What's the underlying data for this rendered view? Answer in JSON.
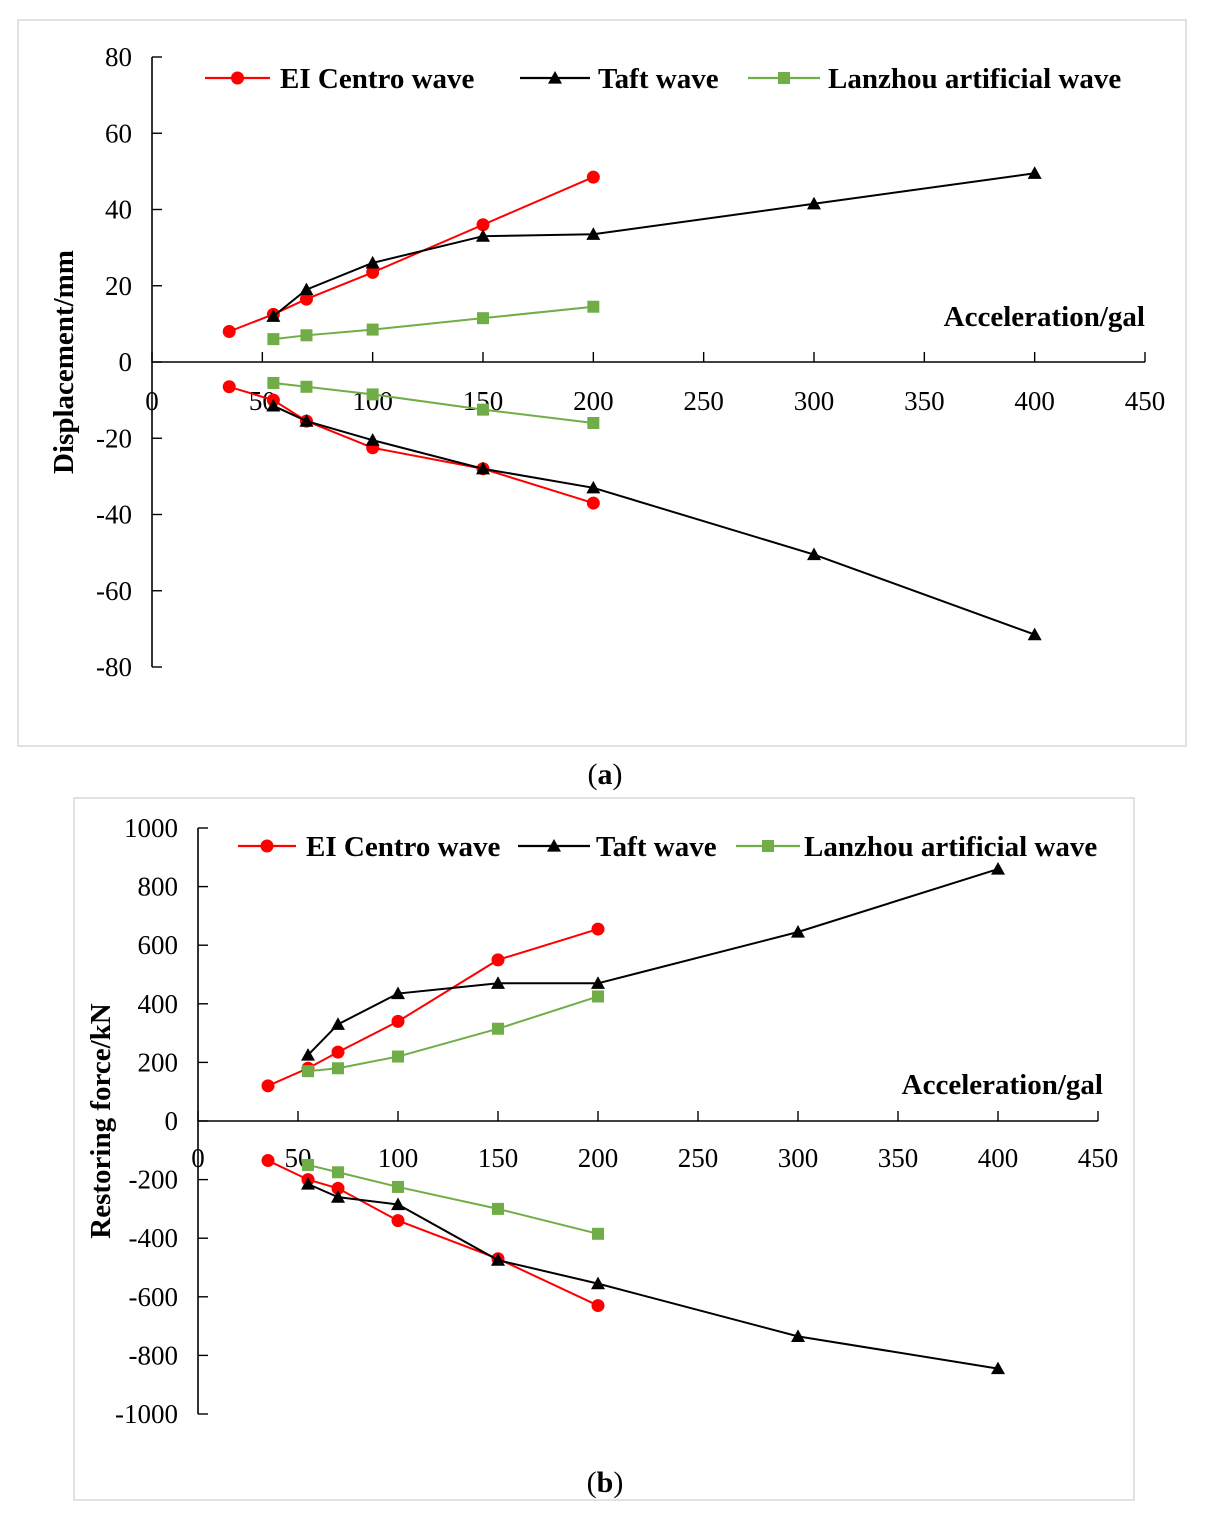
{
  "captions": {
    "a": "a",
    "b": "b"
  },
  "chart_data": [
    {
      "type": "line",
      "panel": "a",
      "title": "",
      "xlabel": "Acceleration/gal",
      "ylabel": "Displacement/mm",
      "xlim": [
        0,
        450
      ],
      "ylim": [
        -80,
        80
      ],
      "xticks": [
        0,
        50,
        100,
        150,
        200,
        250,
        300,
        350,
        400,
        450
      ],
      "yticks": [
        -80,
        -60,
        -40,
        -20,
        0,
        20,
        40,
        60,
        80
      ],
      "legend": "top",
      "colors": {
        "EI Centro wave": "#ff0000",
        "Taft wave": "#000000",
        "Lanzhou artificial wave": "#70ad47"
      },
      "series": [
        {
          "name": "EI Centro wave",
          "marker": "circle",
          "x": [
            35,
            55,
            70,
            100,
            150,
            200
          ],
          "y": [
            8,
            12.5,
            16.5,
            23.5,
            36,
            48.5
          ]
        },
        {
          "name": "EI Centro wave",
          "marker": "circle",
          "x": [
            35,
            55,
            70,
            100,
            150,
            200
          ],
          "y": [
            -6.5,
            -10,
            -15.5,
            -22.5,
            -28,
            -37
          ]
        },
        {
          "name": "Taft wave",
          "marker": "triangle",
          "x": [
            55,
            70,
            100,
            150,
            200,
            300,
            400
          ],
          "y": [
            12,
            19,
            26,
            33,
            33.5,
            41.5,
            49.5
          ]
        },
        {
          "name": "Taft wave",
          "marker": "triangle",
          "x": [
            55,
            70,
            100,
            150,
            200,
            300,
            400
          ],
          "y": [
            -11.5,
            -15.5,
            -20.5,
            -28,
            -33,
            -50.5,
            -71.5
          ]
        },
        {
          "name": "Lanzhou artificial wave",
          "marker": "square",
          "x": [
            55,
            70,
            100,
            150,
            200
          ],
          "y": [
            6,
            7,
            8.5,
            11.5,
            14.5
          ]
        },
        {
          "name": "Lanzhou artificial wave",
          "marker": "square",
          "x": [
            55,
            70,
            100,
            150,
            200
          ],
          "y": [
            -5.5,
            -6.5,
            -8.5,
            -12.5,
            -16
          ]
        }
      ]
    },
    {
      "type": "line",
      "panel": "b",
      "title": "",
      "xlabel": "Acceleration/gal",
      "ylabel": "Restoring force/kN",
      "xlim": [
        0,
        450
      ],
      "ylim": [
        -1000,
        1000
      ],
      "xticks": [
        0,
        50,
        100,
        150,
        200,
        250,
        300,
        350,
        400,
        450
      ],
      "yticks": [
        -1000,
        -800,
        -600,
        -400,
        -200,
        0,
        200,
        400,
        600,
        800,
        1000
      ],
      "legend": "top",
      "colors": {
        "EI Centro wave": "#ff0000",
        "Taft wave": "#000000",
        "Lanzhou artificial wave": "#70ad47"
      },
      "series": [
        {
          "name": "EI Centro wave",
          "marker": "circle",
          "x": [
            35,
            55,
            70,
            100,
            150,
            200
          ],
          "y": [
            120,
            180,
            235,
            340,
            550,
            655
          ]
        },
        {
          "name": "EI Centro wave",
          "marker": "circle",
          "x": [
            35,
            55,
            70,
            100,
            150,
            200
          ],
          "y": [
            -135,
            -200,
            -230,
            -340,
            -470,
            -630
          ]
        },
        {
          "name": "Taft wave",
          "marker": "triangle",
          "x": [
            55,
            70,
            100,
            150,
            200,
            300,
            400
          ],
          "y": [
            225,
            330,
            435,
            470,
            470,
            645,
            860
          ]
        },
        {
          "name": "Taft wave",
          "marker": "triangle",
          "x": [
            55,
            70,
            100,
            150,
            200,
            300,
            400
          ],
          "y": [
            -215,
            -260,
            -285,
            -475,
            -555,
            -735,
            -845
          ]
        },
        {
          "name": "Lanzhou artificial wave",
          "marker": "square",
          "x": [
            55,
            70,
            100,
            150,
            200
          ],
          "y": [
            170,
            180,
            220,
            315,
            425
          ]
        },
        {
          "name": "Lanzhou artificial wave",
          "marker": "square",
          "x": [
            55,
            70,
            100,
            150,
            200
          ],
          "y": [
            -150,
            -175,
            -225,
            -300,
            -385
          ]
        }
      ]
    }
  ]
}
